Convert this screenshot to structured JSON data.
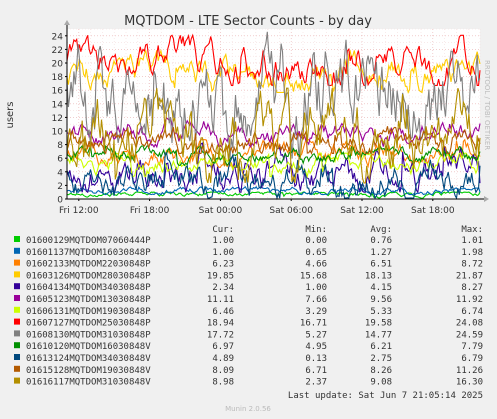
{
  "chart_data": {
    "type": "line",
    "title": "MQTDOM - LTE Sector Counts - by day",
    "ylabel": "users",
    "side_label": "RRDTOOL / TOBI OETIKER",
    "ylim": [
      0,
      25
    ],
    "y_ticks": [
      0,
      2,
      4,
      6,
      8,
      10,
      12,
      14,
      16,
      18,
      20,
      22,
      24
    ],
    "x_ticks": [
      "Fri 12:00",
      "Fri 18:00",
      "Sat 00:00",
      "Sat 06:00",
      "Sat 12:00",
      "Sat 18:00"
    ],
    "x_tick_hours": [
      0,
      6,
      12,
      18,
      24,
      30
    ],
    "x_range_hours": [
      -1,
      34
    ],
    "grid": true,
    "legend_headers": {
      "cur": "Cur:",
      "min": "Min:",
      "avg": "Avg:",
      "max": "Max:"
    },
    "series": [
      {
        "name": "01600129MQTDOM07060444P",
        "color": "#00cc00",
        "cur": "1.00",
        "min": "0.00",
        "avg": "0.76",
        "max": "1.01"
      },
      {
        "name": "01601137MQTDOM16030848P",
        "color": "#0066b3",
        "cur": "1.00",
        "min": "0.65",
        "avg": "1.27",
        "max": "1.98"
      },
      {
        "name": "01602133MQTDOM22030848P",
        "color": "#ff8000",
        "cur": "6.23",
        "min": "4.66",
        "avg": "6.51",
        "max": "8.72"
      },
      {
        "name": "01603126MQTDOM28030848P",
        "color": "#ffcc00",
        "cur": "19.85",
        "min": "15.68",
        "avg": "18.13",
        "max": "21.87"
      },
      {
        "name": "01604134MQTDOM34030848P",
        "color": "#330099",
        "cur": "2.34",
        "min": "1.00",
        "avg": "4.15",
        "max": "8.27"
      },
      {
        "name": "01605123MQTDOM13030848P",
        "color": "#990099",
        "cur": "11.11",
        "min": "7.66",
        "avg": "9.56",
        "max": "11.92"
      },
      {
        "name": "01606131MQTDOM19030848P",
        "color": "#ccff00",
        "cur": "6.46",
        "min": "3.29",
        "avg": "5.33",
        "max": "6.74"
      },
      {
        "name": "01607127MQTDOM25030848P",
        "color": "#ff0000",
        "cur": "18.94",
        "min": "16.71",
        "avg": "19.58",
        "max": "24.08"
      },
      {
        "name": "01608130MQTDOM31030848P",
        "color": "#808080",
        "cur": "17.72",
        "min": "5.27",
        "avg": "14.77",
        "max": "24.59"
      },
      {
        "name": "01610120MQTDOM16030848V",
        "color": "#008f00",
        "cur": "6.97",
        "min": "4.95",
        "avg": "6.21",
        "max": "7.79"
      },
      {
        "name": "01613124MQTDOM34030848V",
        "color": "#00487d",
        "cur": "4.89",
        "min": "0.13",
        "avg": "2.75",
        "max": "6.79"
      },
      {
        "name": "01615128MQTDOM19030848V",
        "color": "#b35a00",
        "cur": "8.09",
        "min": "6.71",
        "avg": "8.26",
        "max": "11.26"
      },
      {
        "name": "01616117MQTDOM31030848V",
        "color": "#b38f00",
        "cur": "8.98",
        "min": "2.37",
        "avg": "9.08",
        "max": "16.30"
      }
    ],
    "last_update": "Last update: Sat Jun  7 21:05:14 2025",
    "footer": "Munin 2.0.56"
  }
}
